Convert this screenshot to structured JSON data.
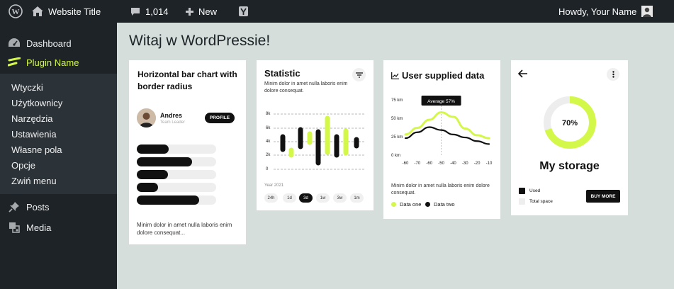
{
  "admin_bar": {
    "wp_logo_icon": "wordpress-logo-icon",
    "home_icon": "house-icon",
    "site_title": "Website Title",
    "comments_icon": "comment-bubble-icon",
    "comments_count": "1,014",
    "new_icon": "plus-icon",
    "new_label": "New",
    "yoast_icon": "yoast-icon",
    "greeting": "Howdy, Your Name"
  },
  "sidebar": {
    "dashboard": "Dashboard",
    "plugin": "Plugin Name",
    "submenu": [
      "Wtyczki",
      "Użytkownicy",
      "Narzędzia",
      "Ustawienia",
      "Własne pola",
      "Opcje",
      "Zwiń menu"
    ],
    "posts": "Posts",
    "media": "Media",
    "accent_color": "#d4f84a"
  },
  "page_title": "Witaj w WordPressie!",
  "card_bars": {
    "title": "Horizontal bar chart with border radius",
    "user_name": "Andres",
    "user_role": "Team Leader",
    "profile_button": "PROFILE",
    "bars": [
      0.4,
      0.7,
      0.39,
      0.27,
      0.79
    ],
    "footer": "Minim dolor in amet nulla laboris enim dolore consequat..."
  },
  "card_statistic": {
    "title": "Statistic",
    "filter_icon": "filter-icon",
    "subtitle": "Minim dolor in amet nulla laboris enim dolore consequat.",
    "y_ticks": [
      "8k",
      "6k",
      "4k",
      "2k",
      "0"
    ],
    "period": "Year 2021",
    "chips": [
      "24h",
      "1d",
      "3d",
      "1w",
      "3w",
      "1m"
    ],
    "active_chip": "3d"
  },
  "chart_data": {
    "type": "line",
    "title": "User supplied data",
    "x": [
      -60,
      -70,
      -60,
      -50,
      -40,
      -30,
      -20,
      -10
    ],
    "y_ticks": [
      "75 km",
      "50 km",
      "25 km",
      "0 km"
    ],
    "ylim": [
      0,
      75
    ],
    "annotation": "Average 57%",
    "series": [
      {
        "name": "Data one",
        "color": "#d4f84a",
        "values": [
          28,
          37,
          48,
          58,
          52,
          36,
          27,
          23
        ]
      },
      {
        "name": "Data two",
        "color": "#111111",
        "values": [
          23,
          31,
          38,
          34,
          28,
          24,
          19,
          15
        ]
      }
    ],
    "description": "Minim dolor in amet nulla laboris enim dolore consequat.",
    "chart_icon": "line-chart-icon"
  },
  "card_storage": {
    "back_icon": "arrow-left-icon",
    "more_icon": "more-vertical-icon",
    "percent": "70%",
    "fill_fraction": 0.7,
    "title": "My storage",
    "legend": [
      "Used",
      "Total space"
    ],
    "button": "BUY MORE"
  }
}
